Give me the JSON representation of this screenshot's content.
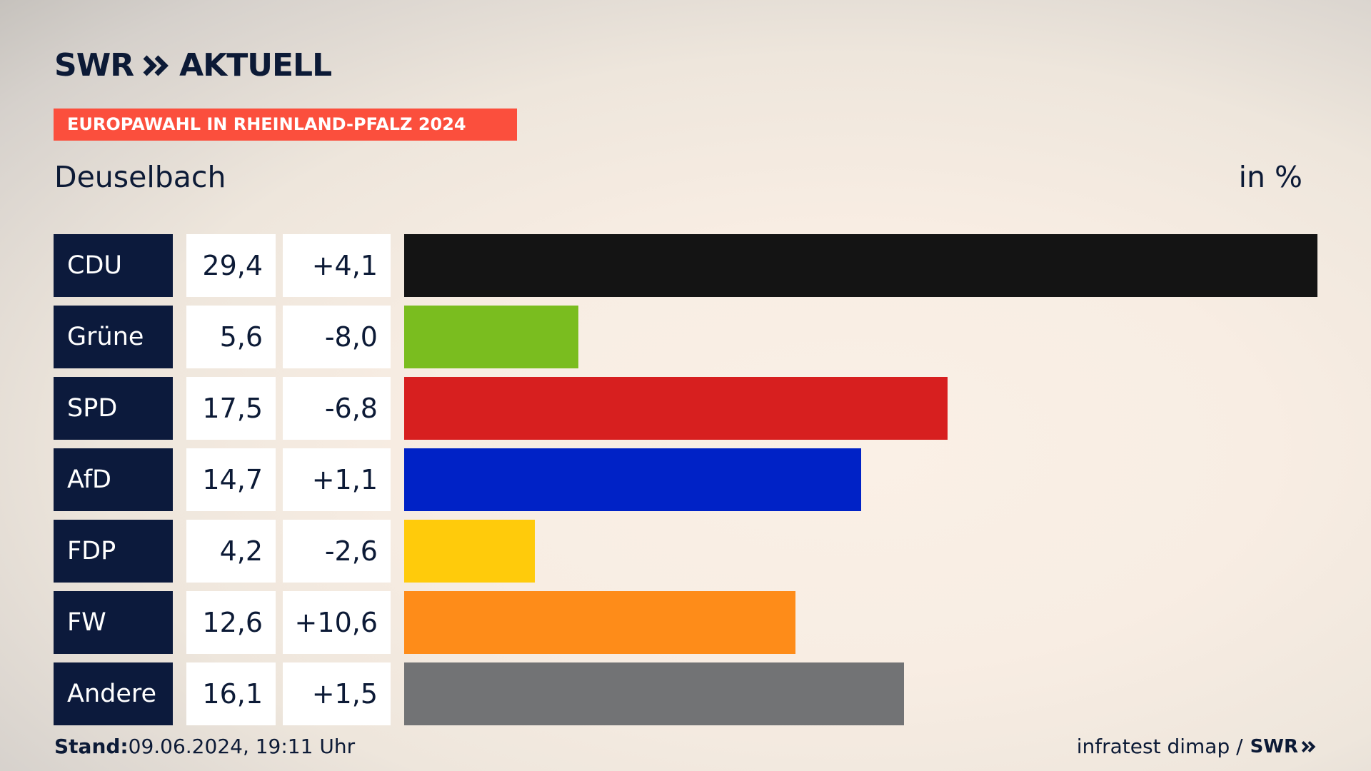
{
  "brand": {
    "logo_text": "SWR",
    "logo_suffix": "AKTUELL",
    "footer_logo": "SWR"
  },
  "badge": "EUROPAWAHL IN RHEINLAND-PFALZ 2024",
  "region": "Deuselbach",
  "unit": "in %",
  "footer": {
    "stand_label": "Stand:",
    "stand_value": "09.06.2024, 19:11 Uhr",
    "source": "infratest dimap /"
  },
  "chart_data": {
    "type": "bar",
    "orientation": "horizontal",
    "categories": [
      "CDU",
      "Grüne",
      "SPD",
      "AfD",
      "FDP",
      "FW",
      "Andere"
    ],
    "values": [
      29.4,
      5.6,
      17.5,
      14.7,
      4.2,
      12.6,
      16.1
    ],
    "value_labels": [
      "29,4",
      "5,6",
      "17,5",
      "14,7",
      "4,2",
      "12,6",
      "16,1"
    ],
    "diff_labels": [
      "+4,1",
      "-8,0",
      "-6,8",
      "+1,1",
      "-2,6",
      "+10,6",
      "+1,5"
    ],
    "diffs": [
      4.1,
      -8.0,
      -6.8,
      1.1,
      -2.6,
      10.6,
      1.5
    ],
    "colors": [
      "#141414",
      "#7abd1f",
      "#d71f1f",
      "#0022c6",
      "#ffcb0b",
      "#fe8c19",
      "#727375"
    ],
    "xlim": [
      0,
      29.4
    ],
    "grid": false
  }
}
